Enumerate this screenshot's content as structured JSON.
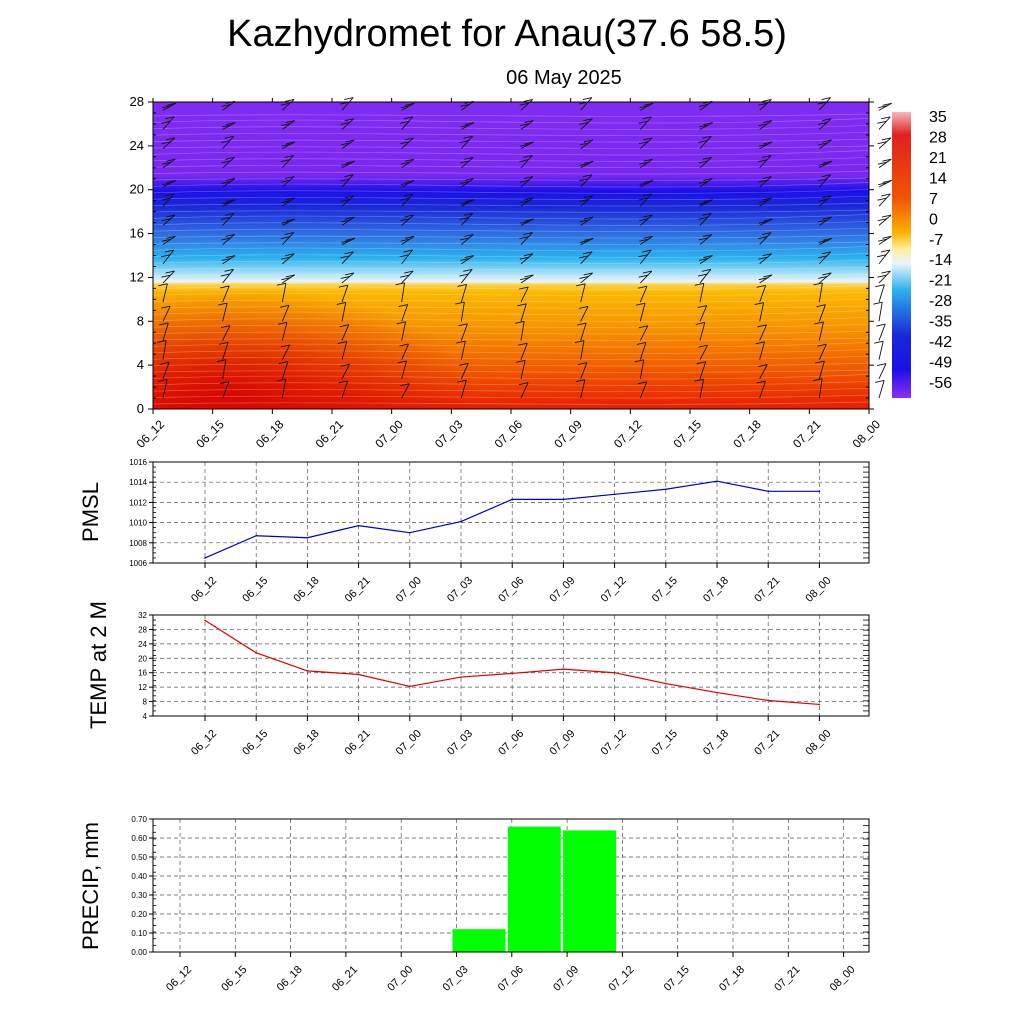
{
  "title": "Kazhydromet for Anau(37.6 58.5)",
  "subtitle": "06 May 2025",
  "colors": {
    "pmsl_line": "#0000cc",
    "temp_line": "#dd0000",
    "precip_bar": "#00ff00",
    "grid": "#000000"
  },
  "chart_data": [
    {
      "type": "heatmap",
      "name": "vertical-cross-section",
      "x_categories": [
        "06_12",
        "06_15",
        "06_18",
        "06_21",
        "07_00",
        "07_03",
        "07_06",
        "07_09",
        "07_12",
        "07_15",
        "07_18",
        "07_21",
        "08_00"
      ],
      "y_ticks": [
        0,
        4,
        8,
        12,
        16,
        20,
        24,
        28
      ],
      "ylim": [
        0,
        28
      ],
      "colorbar_labels": [
        "35",
        "28",
        "21",
        "14",
        "7",
        "0",
        "-7",
        "-14",
        "-21",
        "-28",
        "-35",
        "-42",
        "-49",
        "-56"
      ],
      "temperature_by_level": [
        {
          "level": 0,
          "value": 32
        },
        {
          "level": 4,
          "value": 21
        },
        {
          "level": 8,
          "value": 7
        },
        {
          "level": 11.5,
          "value": -2
        },
        {
          "level": 13,
          "value": -21
        },
        {
          "level": 16,
          "value": -35
        },
        {
          "level": 20,
          "value": -56
        },
        {
          "level": 22,
          "value": -63
        },
        {
          "level": 28,
          "value": -63
        }
      ],
      "wind_barbs": true
    },
    {
      "type": "line",
      "name": "pmsl",
      "ylabel": "PMSL",
      "categories": [
        "06_12",
        "06_15",
        "06_18",
        "06_21",
        "07_00",
        "07_03",
        "07_06",
        "07_09",
        "07_12",
        "07_15",
        "07_18",
        "07_21",
        "08_00"
      ],
      "values": [
        1006.5,
        1008.7,
        1008.5,
        1009.7,
        1009.0,
        1010.1,
        1012.3,
        1012.3,
        1012.8,
        1013.3,
        1014.1,
        1013.1,
        1013.1
      ],
      "ylim": [
        1006,
        1016
      ],
      "y_ticks": [
        1006,
        1008,
        1010,
        1012,
        1014,
        1016
      ],
      "grid": true
    },
    {
      "type": "line",
      "name": "temperature-2m",
      "ylabel": "TEMP at 2 M",
      "categories": [
        "06_12",
        "06_15",
        "06_18",
        "06_21",
        "07_00",
        "07_03",
        "07_06",
        "07_09",
        "07_12",
        "07_15",
        "07_18",
        "07_21",
        "08_00"
      ],
      "values": [
        30.5,
        21.5,
        16.5,
        15.5,
        12.2,
        14.8,
        15.8,
        17.0,
        16.0,
        13.0,
        10.5,
        8.3,
        7.2
      ],
      "ylim": [
        4,
        32
      ],
      "y_ticks": [
        4,
        8,
        12,
        16,
        20,
        24,
        28,
        32
      ],
      "grid": true
    },
    {
      "type": "bar",
      "name": "precipitation",
      "ylabel": "PRECIP, mm",
      "categories": [
        "06_12",
        "06_15",
        "06_18",
        "06_21",
        "07_00",
        "07_03",
        "07_06",
        "07_09",
        "07_12",
        "07_15",
        "07_18",
        "07_21",
        "08_00"
      ],
      "values": [
        0,
        0,
        0,
        0,
        0,
        0.12,
        0.66,
        0.64,
        0,
        0,
        0,
        0,
        0
      ],
      "ylim": [
        0,
        0.7
      ],
      "y_ticks": [
        "0.00",
        "0.10",
        "0.20",
        "0.30",
        "0.40",
        "0.50",
        "0.60",
        "0.70"
      ],
      "grid": true
    }
  ]
}
